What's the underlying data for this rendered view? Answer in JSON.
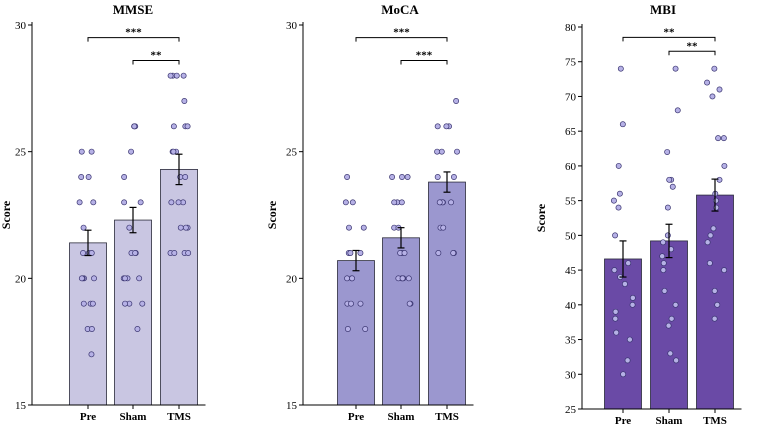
{
  "chart_data": [
    {
      "type": "bar",
      "title": "MMSE",
      "ylabel": "Score",
      "xlabel": "",
      "categories": [
        "Pre",
        "Sham",
        "TMS"
      ],
      "values": [
        21.4,
        22.3,
        24.3
      ],
      "errors": [
        0.5,
        0.5,
        0.6
      ],
      "ylim": [
        15,
        30
      ],
      "yticks": [
        15,
        20,
        25,
        30
      ],
      "color": "#c9c6e2",
      "points": [
        [
          25,
          25,
          24,
          24,
          23,
          23,
          22,
          21,
          21,
          21,
          20,
          20,
          20,
          20,
          19,
          19,
          19,
          18,
          18,
          17
        ],
        [
          26,
          26,
          26,
          25,
          24,
          23,
          23,
          22,
          21,
          21,
          21,
          20,
          20,
          20,
          20,
          19,
          19,
          19,
          18
        ],
        [
          28,
          28,
          28,
          28,
          27,
          26,
          26,
          26,
          25,
          25,
          25,
          24,
          24,
          23,
          23,
          23,
          22,
          22,
          22,
          21,
          21,
          21,
          21
        ]
      ],
      "significance": [
        {
          "from": 0,
          "to": 2,
          "label": "***",
          "y": 29.5
        },
        {
          "from": 1,
          "to": 2,
          "label": "**",
          "y": 28.6
        }
      ]
    },
    {
      "type": "bar",
      "title": "MoCA",
      "ylabel": "Score",
      "xlabel": "",
      "categories": [
        "Pre",
        "Sham",
        "TMS"
      ],
      "values": [
        20.7,
        21.6,
        23.8
      ],
      "errors": [
        0.4,
        0.4,
        0.4
      ],
      "ylim": [
        15,
        30
      ],
      "yticks": [
        15,
        20,
        25,
        30
      ],
      "color": "#9b97cf",
      "points": [
        [
          24,
          23,
          23,
          22,
          22,
          21,
          21,
          21,
          20,
          20,
          20,
          19,
          19,
          19,
          18,
          18
        ],
        [
          24,
          24,
          24,
          23,
          23,
          23,
          22,
          22,
          21,
          21,
          21,
          20,
          20,
          20,
          20,
          20,
          19,
          19
        ],
        [
          27,
          26,
          26,
          26,
          25,
          25,
          25,
          24,
          24,
          23,
          23,
          23,
          23,
          23,
          22,
          22,
          21,
          21,
          21
        ]
      ],
      "significance": [
        {
          "from": 0,
          "to": 2,
          "label": "***",
          "y": 29.5
        },
        {
          "from": 1,
          "to": 2,
          "label": "***",
          "y": 28.6
        }
      ]
    },
    {
      "type": "bar",
      "title": "MBI",
      "ylabel": "Score",
      "xlabel": "",
      "categories": [
        "Pre",
        "Sham",
        "TMS"
      ],
      "values": [
        46.6,
        49.2,
        55.8
      ],
      "errors": [
        2.6,
        2.4,
        2.3
      ],
      "ylim": [
        25,
        80
      ],
      "yticks": [
        25,
        30,
        35,
        40,
        45,
        50,
        55,
        60,
        65,
        70,
        75,
        80
      ],
      "color": "#6a4aa6",
      "points": [
        [
          74,
          66,
          60,
          56,
          55,
          54,
          50,
          46,
          45,
          44,
          43,
          41,
          40,
          39,
          38,
          36,
          35,
          32,
          30
        ],
        [
          74,
          68,
          62,
          58,
          58,
          57,
          54,
          50,
          49,
          48,
          47,
          46,
          45,
          42,
          40,
          38,
          37,
          33,
          32
        ],
        [
          74,
          72,
          71,
          70,
          64,
          64,
          60,
          58,
          56,
          55,
          54,
          51,
          50,
          49,
          46,
          45,
          42,
          40,
          38
        ]
      ],
      "significance": [
        {
          "from": 0,
          "to": 2,
          "label": "**",
          "y": 78.5
        },
        {
          "from": 1,
          "to": 2,
          "label": "**",
          "y": 76.5
        }
      ]
    }
  ]
}
